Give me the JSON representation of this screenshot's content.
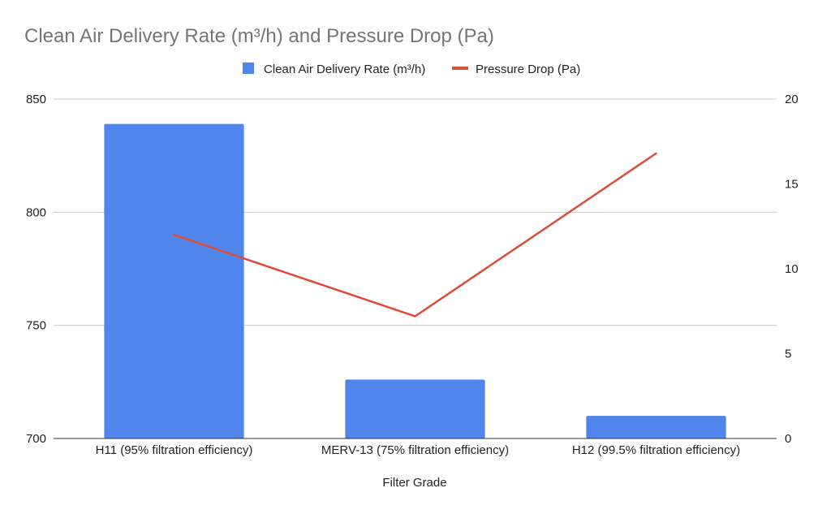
{
  "chart_data": {
    "type": "bar",
    "title": "Clean Air Delivery Rate (m³/h) and Pressure Drop (Pa)",
    "xlabel": "Filter Grade",
    "categories": [
      "H11 (95% filtration efficiency)",
      "MERV-13 (75% filtration efficiency)",
      "H12 (99.5% filtration efficiency)"
    ],
    "series": [
      {
        "name": "Clean Air Delivery Rate (m³/h)",
        "type": "bar",
        "axis": "left",
        "color": "#5086ec",
        "values": [
          839,
          726,
          710
        ]
      },
      {
        "name": "Pressure Drop (Pa)",
        "type": "line",
        "axis": "right",
        "color": "#dd4b39",
        "values": [
          12,
          7.2,
          16.8
        ]
      }
    ],
    "y_left": {
      "min": 700,
      "max": 850,
      "ticks": [
        "700",
        "750",
        "800",
        "850"
      ]
    },
    "y_right": {
      "min": 0,
      "max": 20,
      "ticks": [
        "0",
        "5",
        "10",
        "15",
        "20"
      ]
    },
    "grid": true,
    "legend": "top-center"
  }
}
